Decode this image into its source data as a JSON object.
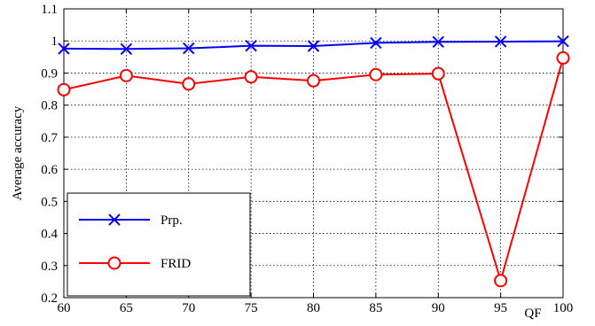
{
  "chart_data": {
    "type": "line",
    "title": "",
    "xlabel": "QF",
    "ylabel": "Average  accuracy",
    "x": [
      60,
      65,
      70,
      75,
      80,
      85,
      90,
      95,
      100
    ],
    "xlim": [
      60,
      100
    ],
    "ylim": [
      0.2,
      1.1
    ],
    "xticks": [
      "60",
      "65",
      "70",
      "75",
      "80",
      "85",
      "90",
      "95",
      "100"
    ],
    "yticks": [
      "0.2",
      "0.3",
      "0.4",
      "0.5",
      "0.6",
      "0.7",
      "0.8",
      "0.9",
      "1",
      "1.1"
    ],
    "grid": true,
    "legend_position": "bottom-left",
    "series": [
      {
        "name": "Prp.",
        "color": "#0000ff",
        "marker": "x",
        "values": [
          0.976,
          0.975,
          0.977,
          0.985,
          0.984,
          0.994,
          0.997,
          0.998,
          0.999
        ]
      },
      {
        "name": "FRID",
        "color": "#ff0000",
        "marker": "o",
        "values": [
          0.848,
          0.892,
          0.866,
          0.888,
          0.876,
          0.895,
          0.898,
          0.253,
          0.947
        ]
      }
    ]
  }
}
